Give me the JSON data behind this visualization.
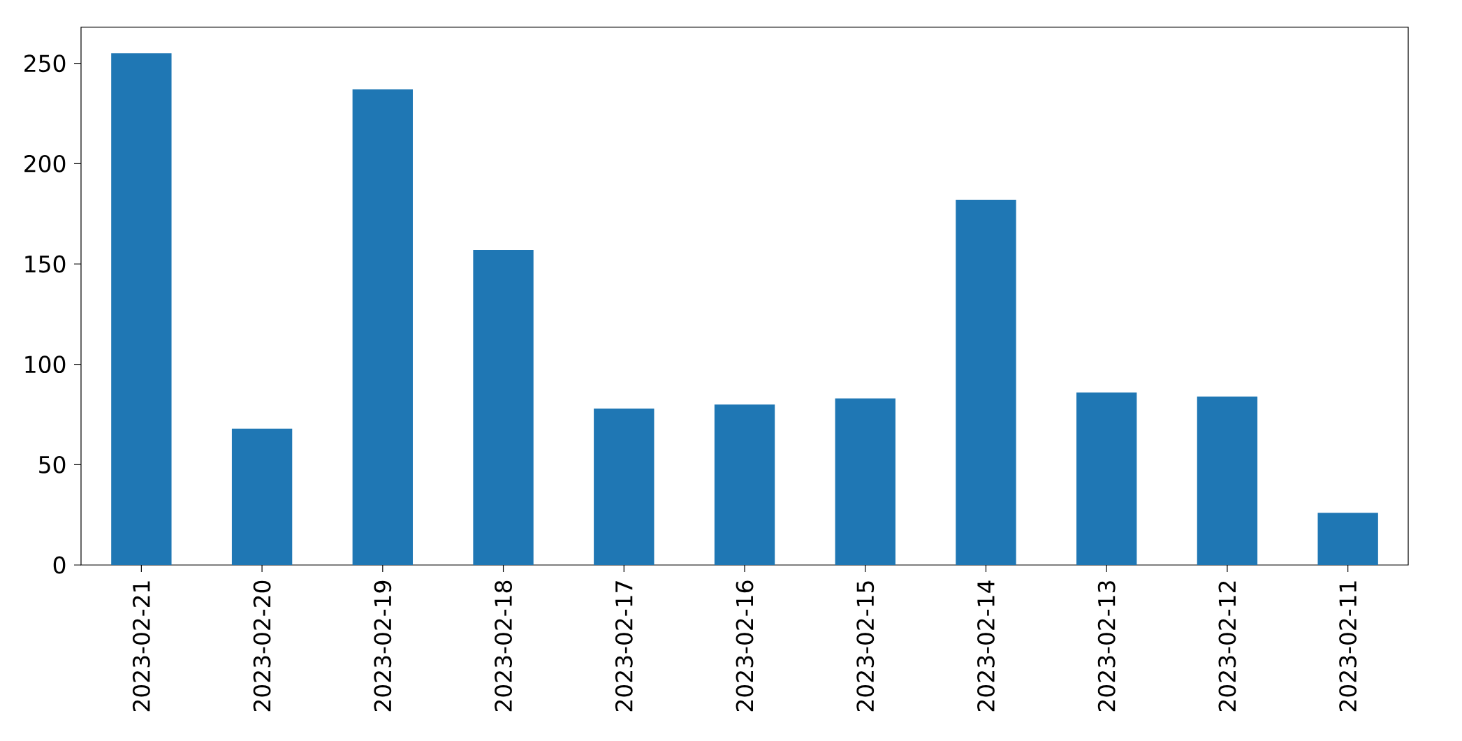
{
  "chart_data": {
    "type": "bar",
    "categories": [
      "2023-02-21",
      "2023-02-20",
      "2023-02-19",
      "2023-02-18",
      "2023-02-17",
      "2023-02-16",
      "2023-02-15",
      "2023-02-14",
      "2023-02-13",
      "2023-02-12",
      "2023-02-11"
    ],
    "values": [
      255,
      68,
      237,
      157,
      78,
      80,
      83,
      182,
      86,
      84,
      26
    ],
    "color": "#1f77b4",
    "ylim": [
      0,
      268
    ],
    "yticks": [
      0,
      50,
      100,
      150,
      200,
      250
    ]
  }
}
